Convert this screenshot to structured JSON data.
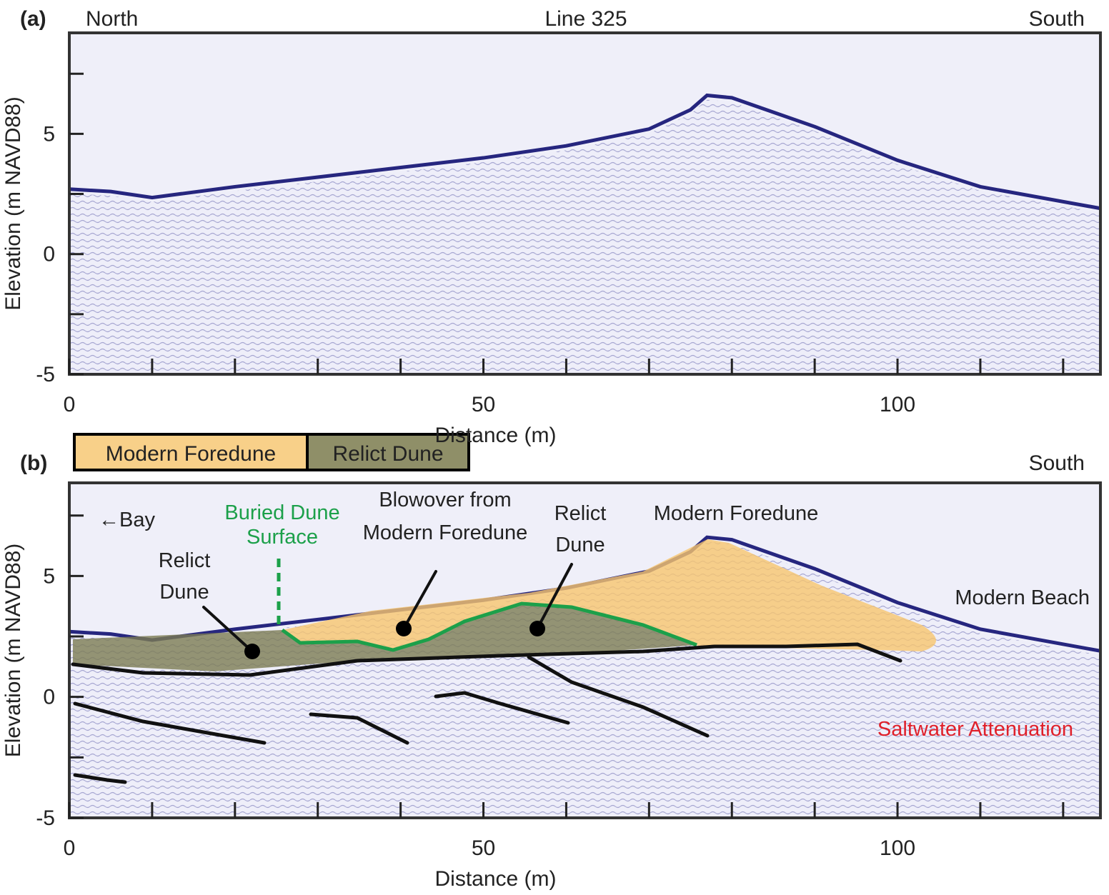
{
  "chart_data": [
    {
      "type": "line",
      "panel_label": "(a)",
      "title": "Line 325",
      "left_label": "North",
      "right_label": "South",
      "x_label": "Distance (m)",
      "y_label": "Elevation (m NAVD88)",
      "xlim": [
        0,
        124.5
      ],
      "xticks": [
        0,
        50,
        100
      ],
      "xminor_ticks": [
        10,
        20,
        30,
        40,
        60,
        70,
        80,
        90,
        110,
        120
      ],
      "ylim": [
        -5,
        9.2
      ],
      "yticks": [
        5,
        0,
        -5
      ],
      "yminor_ticks": [
        7.5,
        2.5,
        -2.5
      ],
      "series": [
        {
          "color": "#26267f",
          "x": [
            0,
            5,
            10,
            20,
            30,
            40,
            50,
            60,
            70,
            75,
            77,
            80,
            90,
            100,
            110,
            124.5
          ],
          "values": [
            2.7,
            2.6,
            2.35,
            2.8,
            3.2,
            3.6,
            4.0,
            4.5,
            5.2,
            6.0,
            6.6,
            6.5,
            5.3,
            3.9,
            2.8,
            1.9
          ]
        }
      ]
    },
    {
      "type": "line",
      "panel_label": "(b)",
      "right_label": "South",
      "legend": [
        "Modern Foredune",
        "Relict Dune"
      ],
      "annotations": {
        "bay": "←Bay",
        "buried": [
          "Buried Dune",
          "Surface"
        ],
        "relict_left": [
          "Relict",
          "Dune"
        ],
        "blowover": [
          "Blowover from",
          "Modern Foredune"
        ],
        "relict_right": [
          "Relict",
          "Dune"
        ],
        "foredune": "Modern Foredune",
        "beach": "Modern Beach",
        "saltwater": "Saltwater Attenuation"
      },
      "x_label": "Distance (m)",
      "y_label": "Elevation (m NAVD88)",
      "xlim": [
        0,
        124.5
      ],
      "xticks": [
        0,
        50,
        100
      ],
      "xminor_ticks": [
        10,
        20,
        30,
        40,
        60,
        70,
        80,
        90,
        110,
        120
      ],
      "ylim": [
        -5,
        8.85
      ],
      "yticks": [
        5,
        0,
        -5
      ],
      "yminor_ticks": [
        7.5,
        2.5,
        -2.5
      ],
      "series": [
        {
          "color": "#26267f",
          "x": [
            0,
            5,
            10,
            20,
            30,
            40,
            50,
            60,
            70,
            75,
            77,
            80,
            90,
            100,
            110,
            124.5
          ],
          "values": [
            2.7,
            2.6,
            2.35,
            2.8,
            3.2,
            3.6,
            4.0,
            4.5,
            5.2,
            6.0,
            6.6,
            6.5,
            5.3,
            3.9,
            2.8,
            1.9
          ]
        }
      ]
    }
  ]
}
